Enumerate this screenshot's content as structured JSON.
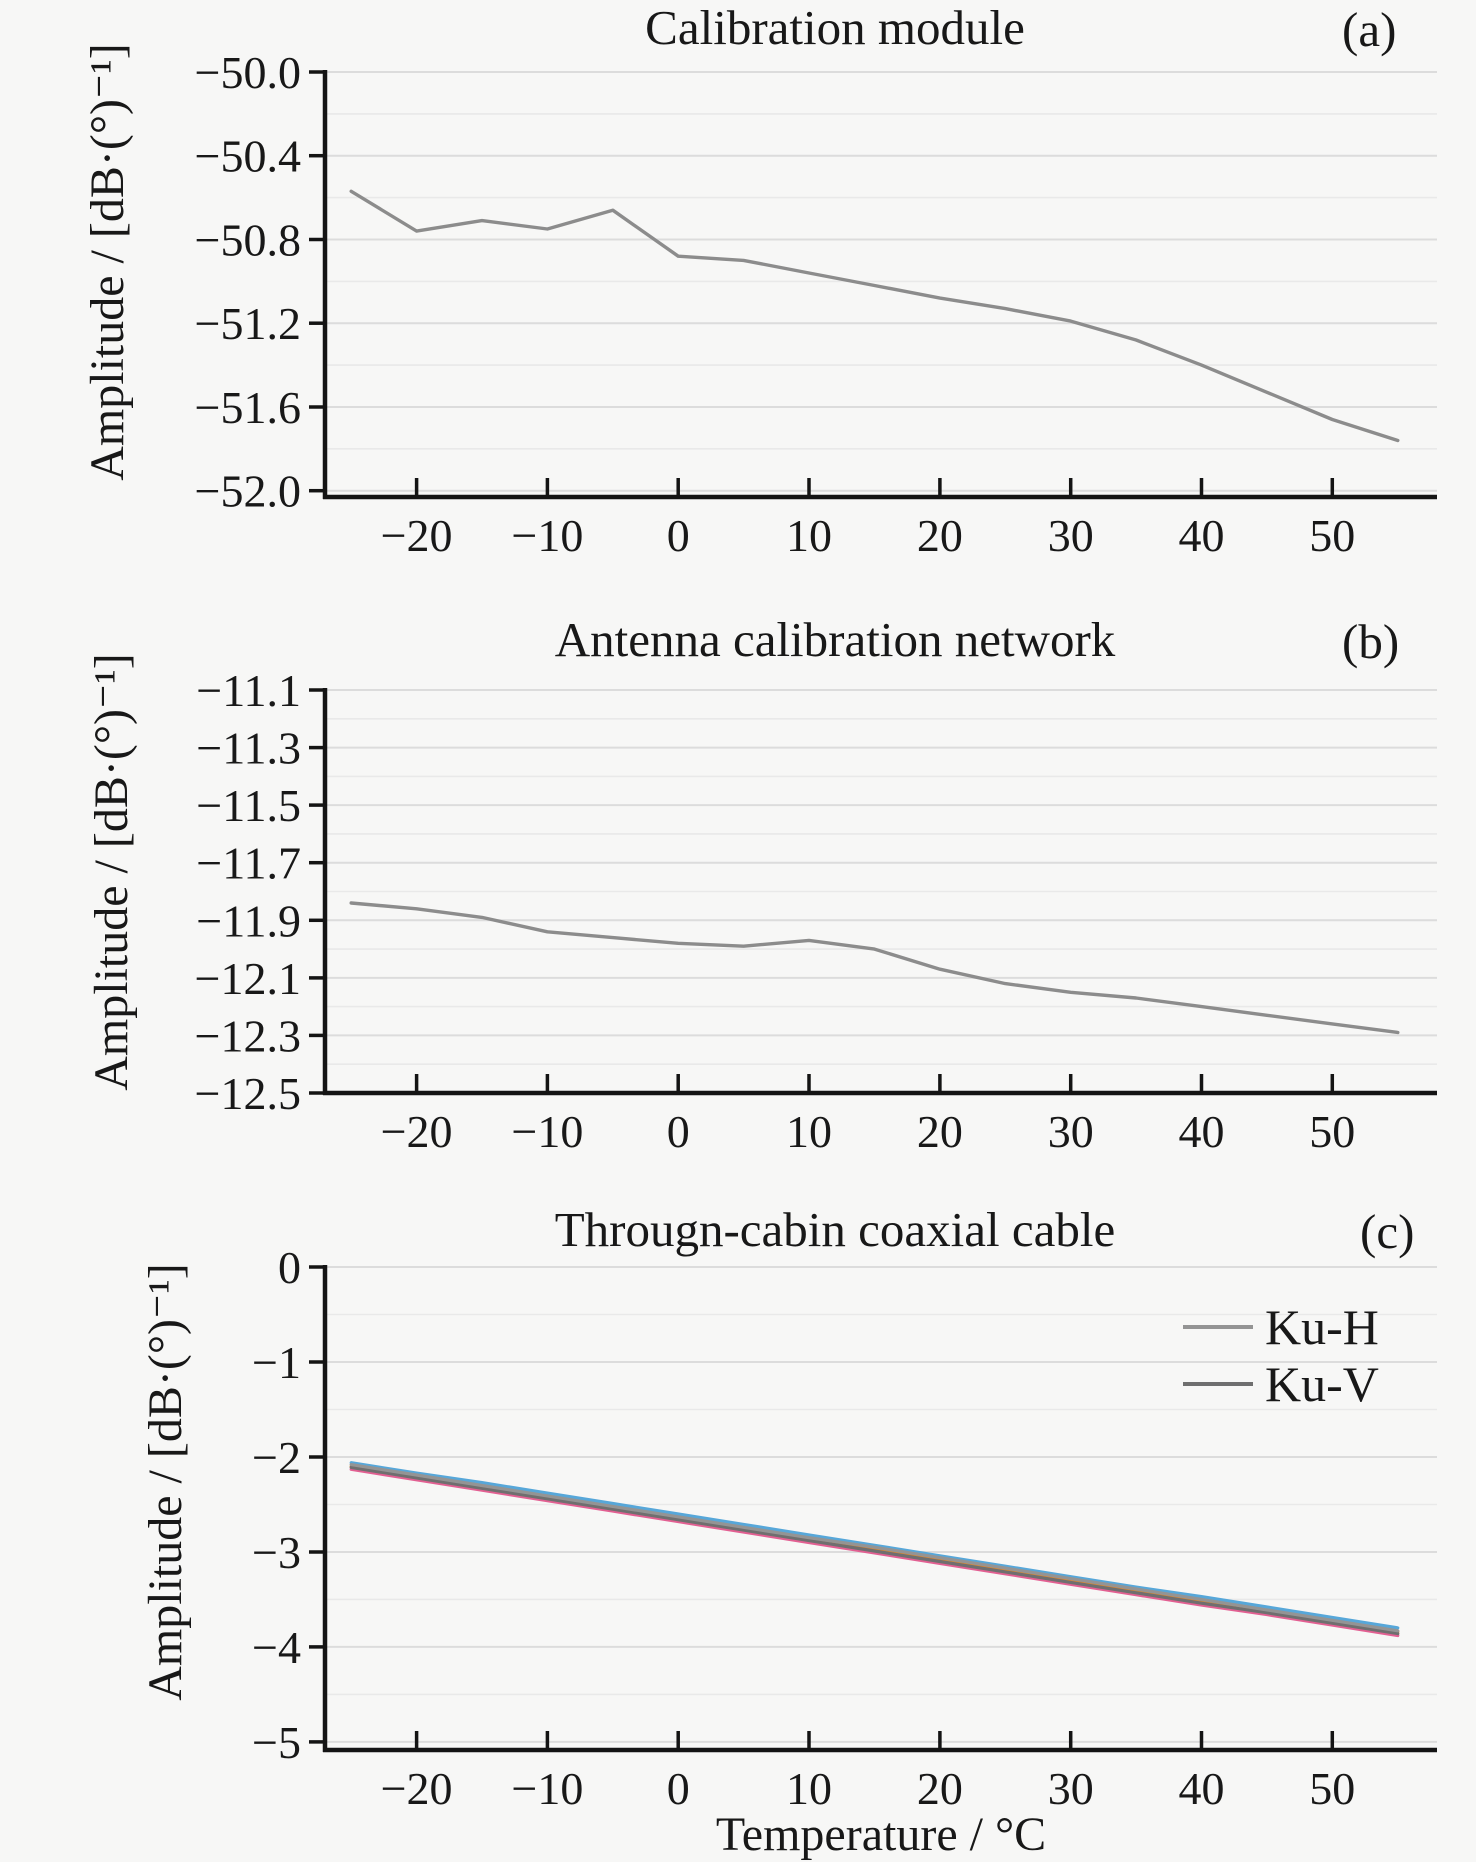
{
  "figure": {
    "background_color": "#f7f7f6",
    "text_color": "#181818",
    "axis_color": "#141414",
    "grid_major_color": "#dcdcdc",
    "grid_minor_color": "#e9e9e9",
    "x_axis_title": "Temperature / °C",
    "x_tick_labels": [
      "−20",
      "−10",
      "0",
      "10",
      "20",
      "30",
      "40",
      "50"
    ],
    "x_tick_values": [
      -20,
      -10,
      0,
      10,
      20,
      30,
      40,
      50
    ],
    "x_range": [
      -27,
      58
    ]
  },
  "chart_data": [
    {
      "type": "line",
      "title": "Calibration module",
      "panel_label": "(a)",
      "xlabel": "",
      "ylabel": "Amplitude / [dB·(°)⁻¹]",
      "grid": true,
      "legend_position": "none",
      "x": [
        -25,
        -20,
        -15,
        -10,
        -5,
        0,
        5,
        10,
        15,
        20,
        25,
        30,
        35,
        40,
        45,
        50,
        55
      ],
      "series": [
        {
          "name": "",
          "role": "data",
          "color": "#8c8c8c",
          "width": 3.4,
          "values": [
            -50.57,
            -50.76,
            -50.71,
            -50.75,
            -50.66,
            -50.88,
            -50.9,
            -50.96,
            -51.02,
            -51.08,
            -51.13,
            -51.19,
            -51.28,
            -51.4,
            -51.53,
            -51.66,
            -51.76
          ]
        }
      ],
      "ylim": [
        -52.03,
        -50.0
      ],
      "yticks": [
        -50.0,
        -50.4,
        -50.8,
        -51.2,
        -51.6,
        -52.0
      ],
      "ytick_labels": [
        "−50.0",
        "−50.4",
        "−50.8",
        "−51.2",
        "−51.6",
        "−52.0"
      ],
      "minor_step": 0.2
    },
    {
      "type": "line",
      "title": "Antenna calibration network",
      "panel_label": "(b)",
      "xlabel": "",
      "ylabel": "Amplitude / [dB·(°)⁻¹]",
      "grid": true,
      "legend_position": "none",
      "x": [
        -25,
        -20,
        -15,
        -10,
        -5,
        0,
        5,
        10,
        15,
        20,
        25,
        30,
        35,
        40,
        45,
        50,
        55
      ],
      "series": [
        {
          "name": "",
          "role": "data",
          "color": "#8c8c8c",
          "width": 3.4,
          "values": [
            -11.84,
            -11.86,
            -11.89,
            -11.94,
            -11.96,
            -11.98,
            -11.99,
            -11.97,
            -12.0,
            -12.07,
            -12.12,
            -12.15,
            -12.17,
            -12.2,
            -12.23,
            -12.26,
            -12.29
          ]
        }
      ],
      "ylim": [
        -12.5,
        -11.1
      ],
      "yticks": [
        -11.1,
        -11.3,
        -11.5,
        -11.7,
        -11.9,
        -12.1,
        -12.3,
        -12.5
      ],
      "ytick_labels": [
        "−11.1",
        "−11.3",
        "−11.5",
        "−11.7",
        "−11.9",
        "−12.1",
        "−12.3",
        "−12.5"
      ],
      "minor_step": 0.1
    },
    {
      "type": "line",
      "title": "Througn-cabin coaxial cable",
      "panel_label": "(c)",
      "xlabel": "Temperature / °C",
      "ylabel": "Amplitude / [dB·(°)⁻¹]",
      "grid": true,
      "legend_position": "upper right",
      "x": [
        -25,
        -20,
        -15,
        -10,
        -5,
        0,
        5,
        10,
        15,
        20,
        25,
        30,
        35,
        40,
        45,
        50,
        55
      ],
      "series": [
        {
          "name": "",
          "role": "overlay",
          "color": "#e26092",
          "width": 3.2,
          "values": [
            -2.13,
            -2.24,
            -2.35,
            -2.46,
            -2.57,
            -2.68,
            -2.79,
            -2.9,
            -3.01,
            -3.12,
            -3.23,
            -3.34,
            -3.45,
            -3.56,
            -3.66,
            -3.77,
            -3.88
          ]
        },
        {
          "name": "",
          "role": "overlay",
          "color": "#e0862c",
          "width": 3.2,
          "values": [
            -2.1,
            -2.21,
            -2.31,
            -2.42,
            -2.53,
            -2.64,
            -2.75,
            -2.86,
            -2.97,
            -3.08,
            -3.19,
            -3.3,
            -3.41,
            -3.52,
            -3.62,
            -3.73,
            -3.84
          ]
        },
        {
          "name": "",
          "role": "overlay",
          "color": "#57a7d9",
          "width": 3.2,
          "values": [
            -2.06,
            -2.17,
            -2.27,
            -2.38,
            -2.49,
            -2.6,
            -2.71,
            -2.82,
            -2.93,
            -3.04,
            -3.15,
            -3.26,
            -3.37,
            -3.47,
            -3.58,
            -3.69,
            -3.8
          ]
        },
        {
          "name": "Ku-V",
          "role": "data",
          "color": "#6f6f6f",
          "width": 3.2,
          "values": [
            -2.11,
            -2.22,
            -2.33,
            -2.44,
            -2.55,
            -2.66,
            -2.77,
            -2.88,
            -2.99,
            -3.1,
            -3.21,
            -3.32,
            -3.43,
            -3.54,
            -3.64,
            -3.75,
            -3.86
          ]
        },
        {
          "name": "Ku-H",
          "role": "data",
          "color": "#949494",
          "width": 3.2,
          "values": [
            -2.08,
            -2.19,
            -2.3,
            -2.41,
            -2.52,
            -2.63,
            -2.74,
            -2.85,
            -2.95,
            -3.06,
            -3.17,
            -3.28,
            -3.39,
            -3.5,
            -3.61,
            -3.72,
            -3.83
          ]
        }
      ],
      "ylim": [
        -5.085,
        0
      ],
      "yticks": [
        0,
        -1,
        -2,
        -3,
        -4,
        -5
      ],
      "ytick_labels": [
        "0",
        "−1",
        "−2",
        "−3",
        "−4",
        "−5"
      ],
      "minor_step": 0.5,
      "legend": {
        "entries": [
          {
            "label": "Ku-H",
            "color": "#949494"
          },
          {
            "label": "Ku-V",
            "color": "#6f6f6f"
          }
        ]
      }
    }
  ]
}
